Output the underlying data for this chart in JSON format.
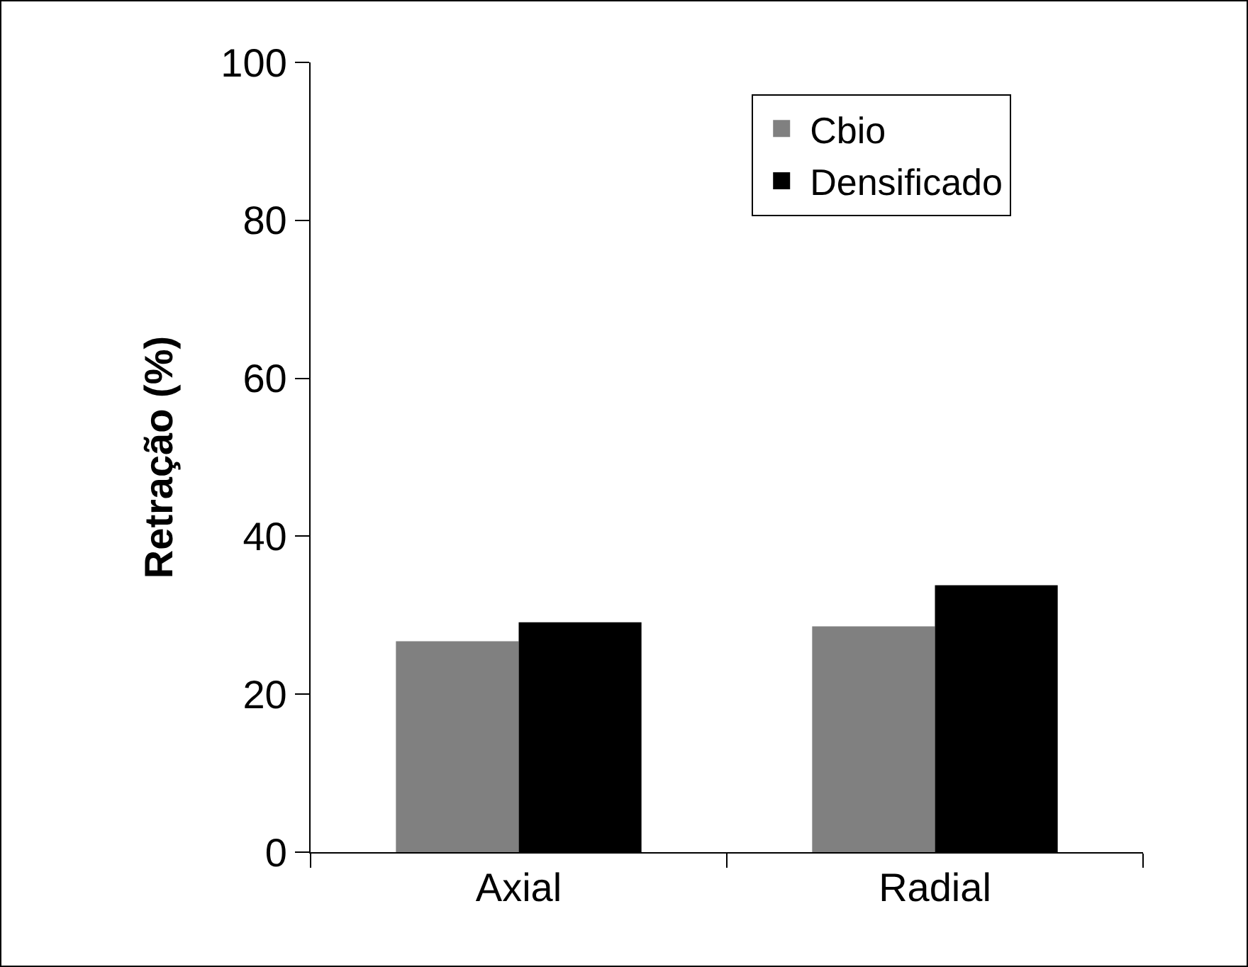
{
  "chart_data": {
    "type": "bar",
    "ylabel": "Retração (%)",
    "categories": [
      "Axial",
      "Radial"
    ],
    "series": [
      {
        "name": "Cbio",
        "color": "#808080",
        "values": [
          26.7,
          28.6
        ]
      },
      {
        "name": "Densificado",
        "color": "#000000",
        "values": [
          29.1,
          33.8
        ]
      }
    ],
    "ylim": [
      0,
      100
    ],
    "yticks": [
      0,
      20,
      40,
      60,
      80,
      100
    ],
    "grid": false,
    "legend": "top right"
  }
}
